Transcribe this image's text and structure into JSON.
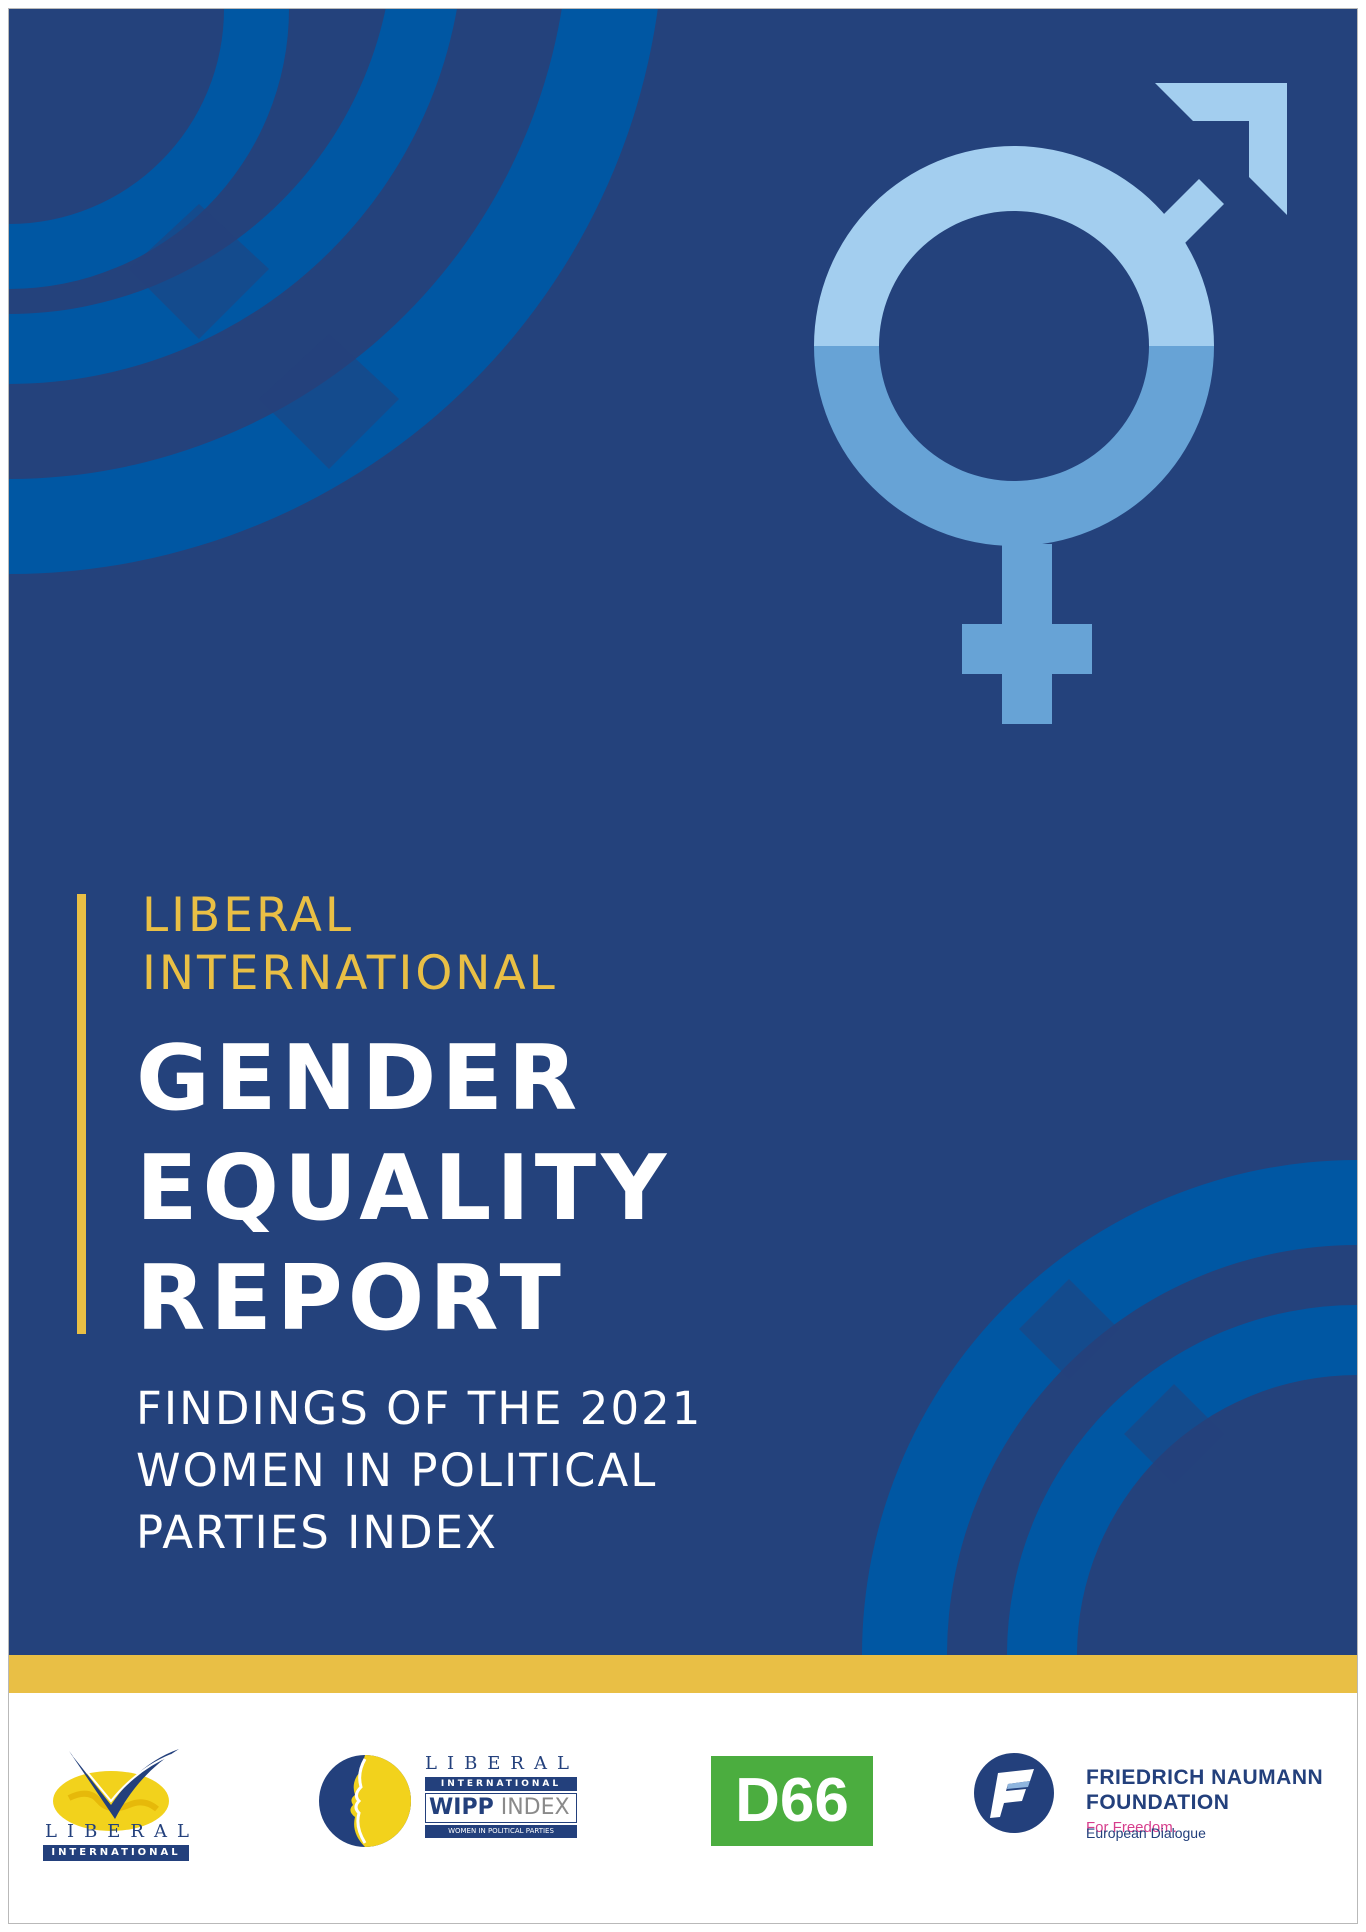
{
  "cover": {
    "kicker": [
      "LIBERAL",
      "INTERNATIONAL"
    ],
    "title": [
      "GENDER",
      "EQUALITY",
      "REPORT"
    ],
    "subtitle": [
      "FINDINGS OF THE 2021",
      "WOMEN IN POLITICAL",
      "PARTIES INDEX"
    ]
  },
  "colors": {
    "background": "#24427c",
    "accent_gold": "#e9bf45",
    "arc_blue": "#0057a3",
    "symbol_light": "#a3ceef",
    "symbol_mid": "#67a3d6"
  },
  "icons": {
    "gender_symbol": "transgender-symbol-icon"
  },
  "logos": {
    "liberal_international": {
      "word": "LIBERAL",
      "band": "INTERNATIONAL"
    },
    "wipp": {
      "word": "LIBERAL",
      "band": "INTERNATIONAL",
      "index_strong": "WIPP",
      "index_light": "INDEX",
      "tagline": "WOMEN IN POLITICAL PARTIES"
    },
    "d66": {
      "text": "D66"
    },
    "fnf": {
      "name_line1": "FRIEDRICH NAUMANN",
      "name_line2": "FOUNDATION",
      "tagline": "For Freedom.",
      "sub": "European Dialogue"
    }
  }
}
